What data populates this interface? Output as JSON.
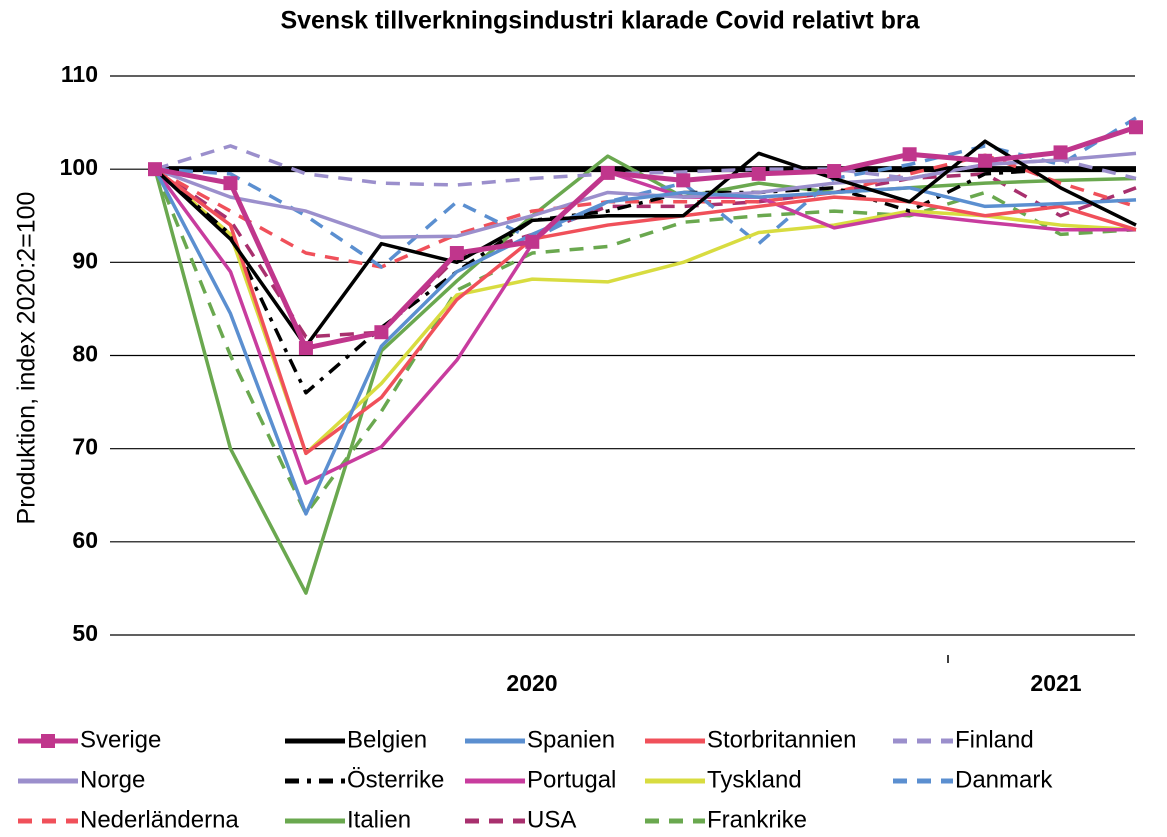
{
  "chart_data": {
    "type": "line",
    "title": "Svensk tillverkningsindustri klarade Covid relativt bra",
    "y_label": "Produktion, index 2020:2=100",
    "categories": [
      null,
      null,
      null,
      null,
      null,
      null,
      null,
      null,
      null,
      null,
      null,
      null,
      null,
      null
    ],
    "year_labels": [
      "2020",
      "2021"
    ],
    "ylim": [
      50,
      110
    ],
    "yticks": [
      50,
      60,
      70,
      80,
      90,
      100,
      110
    ],
    "grid": true,
    "reference_line": 100,
    "legend": "bottom",
    "series": [
      {
        "name": "Sverige",
        "color": "#c0368c",
        "dash": "solid",
        "marker": "square",
        "values": [
          100,
          98.5,
          80.8,
          82.5,
          91,
          92.2,
          99.6,
          98.8,
          99.5,
          99.8,
          101.6,
          100.9,
          101.8,
          104.5
        ]
      },
      {
        "name": "Belgien",
        "color": "#000000",
        "dash": "solid",
        "values": [
          100,
          92.5,
          81,
          92,
          90,
          94.5,
          95,
          95,
          101.7,
          99,
          96.5,
          103,
          98,
          94
        ]
      },
      {
        "name": "Spanien",
        "color": "#5b8fd0",
        "dash": "solid",
        "values": [
          100,
          84.5,
          63,
          81,
          89,
          93,
          96.5,
          97.5,
          97,
          97.5,
          98,
          96,
          96.3,
          96.7
        ]
      },
      {
        "name": "Storbritannien",
        "color": "#f0505a",
        "dash": "solid",
        "values": [
          100,
          94,
          69.5,
          75.5,
          86,
          92.5,
          94,
          95,
          96,
          97,
          96.5,
          95,
          96,
          93.5
        ]
      },
      {
        "name": "Finland",
        "color": "#9b8fcc",
        "dash": "dashed",
        "values": [
          100,
          102.5,
          99.5,
          98.5,
          98.3,
          99,
          99.5,
          99.7,
          100,
          100,
          99,
          100.5,
          101,
          99
        ]
      },
      {
        "name": "Norge",
        "color": "#9b8fcc",
        "dash": "solid",
        "values": [
          100,
          97,
          95.5,
          92.7,
          92.8,
          95,
          97.5,
          97,
          97.5,
          98.5,
          99,
          100.5,
          101,
          101.7
        ]
      },
      {
        "name": "Österrike",
        "color": "#000000",
        "dash": "dashdot",
        "values": [
          100,
          93,
          76,
          83,
          89,
          94.5,
          95.5,
          97.5,
          97.5,
          98,
          95.5,
          99.5,
          100,
          100
        ]
      },
      {
        "name": "Portugal",
        "color": "#c83c9e",
        "dash": "solid",
        "values": [
          100,
          89,
          66.3,
          70.2,
          79.5,
          92,
          99.7,
          97,
          97,
          93.7,
          95.2,
          94.3,
          93.5,
          93.5
        ]
      },
      {
        "name": "Tyskland",
        "color": "#d8dc40",
        "dash": "solid",
        "values": [
          100,
          93,
          69.5,
          77,
          86.5,
          88.2,
          87.9,
          90,
          93.2,
          94,
          95.5,
          95,
          94,
          93.5
        ]
      },
      {
        "name": "Danmark",
        "color": "#5b8fd0",
        "dash": "dashed",
        "values": [
          100,
          99.5,
          95,
          89.5,
          96.5,
          92.5,
          96.5,
          98.5,
          92,
          99,
          100.5,
          102.5,
          100.5,
          105.5
        ]
      },
      {
        "name": "Nederländerna",
        "color": "#f0505a",
        "dash": "dashed",
        "values": [
          100,
          95.5,
          91,
          89.5,
          93,
          95.5,
          96.5,
          96.5,
          96.5,
          97.5,
          99.5,
          101.5,
          98.5,
          96
        ]
      },
      {
        "name": "Italien",
        "color": "#6aa84f",
        "dash": "solid",
        "values": [
          100,
          70,
          54.5,
          80.5,
          88,
          95,
          101.4,
          97,
          98.5,
          97.5,
          98,
          98.5,
          98.8,
          99
        ]
      },
      {
        "name": "USA",
        "color": "#a8306e",
        "dash": "dashed",
        "values": [
          100,
          94.5,
          82,
          82.5,
          90.5,
          93,
          96,
          96,
          96.5,
          97.5,
          99,
          99.5,
          95,
          98
        ]
      },
      {
        "name": "Frankrike",
        "color": "#6aa84f",
        "dash": "dashed",
        "values": [
          100,
          80,
          63,
          74,
          87,
          91,
          91.7,
          94.3,
          95,
          95.5,
          95,
          97.5,
          93,
          93.5
        ]
      }
    ]
  }
}
